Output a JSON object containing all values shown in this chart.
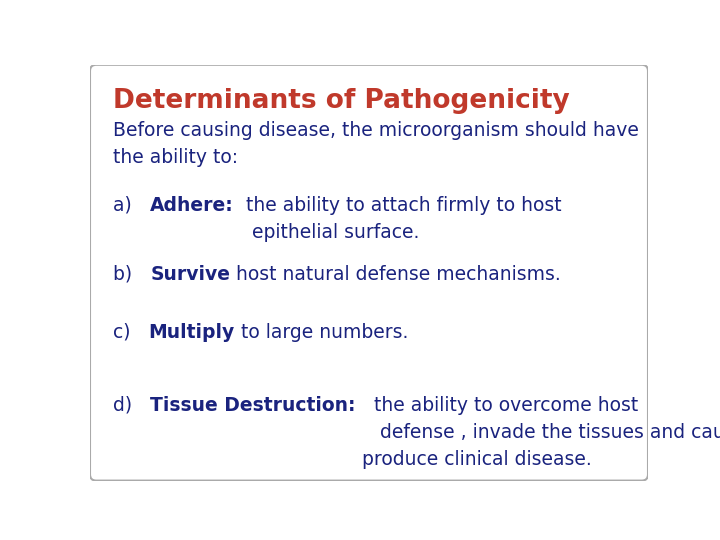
{
  "title": "Determinants of Pathogenicity",
  "title_color": "#c0392b",
  "title_fontsize": 19,
  "body_color": "#1a237e",
  "body_fontsize": 13.5,
  "background_color": "#ffffff",
  "border_color": "#aaaaaa",
  "intro": "Before causing disease, the microorganism should have\nthe ability to:",
  "items": [
    {
      "label": "a)",
      "bold": "Adhere:",
      "normal": "  the ability to attach firmly to host\n   epithelial surface."
    },
    {
      "label": "b)",
      "bold": "Survive",
      "normal": " host natural defense mechanisms."
    },
    {
      "label": "c)",
      "bold": "Multiply",
      "normal": " to large numbers."
    },
    {
      "label": "d)",
      "bold": "Tissue Destruction:",
      "normal": "   the ability to overcome host\n    defense , invade the tissues and cause destruction to\n produce clinical disease."
    }
  ]
}
